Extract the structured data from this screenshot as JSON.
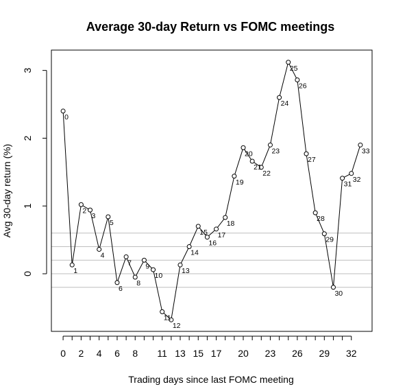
{
  "chart_data": {
    "type": "line",
    "title": "Average 30-day Return vs FOMC meetings",
    "xlabel": "Trading days since last FOMC meeting",
    "ylabel": "Avg 30-day return (%)",
    "xlim": [
      -1.3,
      34.3
    ],
    "ylim": [
      -0.85,
      3.3
    ],
    "x_ticks": [
      0,
      2,
      4,
      6,
      8,
      11,
      13,
      15,
      17,
      20,
      23,
      26,
      29,
      32
    ],
    "x_tick_labels": [
      "0",
      "2",
      "4",
      "6",
      "8",
      "11",
      "13",
      "15",
      "17",
      "20",
      "23",
      "26",
      "29",
      "32"
    ],
    "y_ticks": [
      0,
      1,
      2,
      3
    ],
    "y_tick_labels": [
      "0",
      "1",
      "2",
      "3"
    ],
    "reference_lines": [
      -0.2,
      0,
      0.2,
      0.4,
      0.6
    ],
    "reference_line_color": "#bebebe",
    "series": [
      {
        "x": [
          0,
          1,
          2,
          3,
          4,
          5,
          6,
          7,
          8,
          9,
          10,
          11,
          12,
          13,
          14,
          15,
          16,
          17,
          18,
          19,
          20,
          21,
          22,
          23,
          24,
          25,
          26,
          27,
          28,
          29,
          30,
          31,
          32,
          33
        ],
        "values": [
          2.4,
          0.13,
          1.02,
          0.94,
          0.36,
          0.84,
          -0.13,
          0.25,
          -0.05,
          0.2,
          0.06,
          -0.56,
          -0.68,
          0.13,
          0.4,
          0.7,
          0.54,
          0.66,
          0.83,
          1.44,
          1.86,
          1.66,
          1.57,
          1.9,
          2.6,
          3.12,
          2.86,
          1.77,
          0.9,
          0.59,
          -0.2,
          1.41,
          1.48,
          1.9
        ],
        "point_labels": [
          "0",
          "1",
          "2",
          "3",
          "4",
          "5",
          "6",
          "7",
          "8",
          "9",
          "10",
          "11",
          "12",
          "13",
          "14",
          "15",
          "16",
          "17",
          "18",
          "19",
          "20",
          "21",
          "22",
          "23",
          "24",
          "25",
          "26",
          "27",
          "28",
          "29",
          "30",
          "31",
          "32",
          "33"
        ]
      }
    ]
  }
}
